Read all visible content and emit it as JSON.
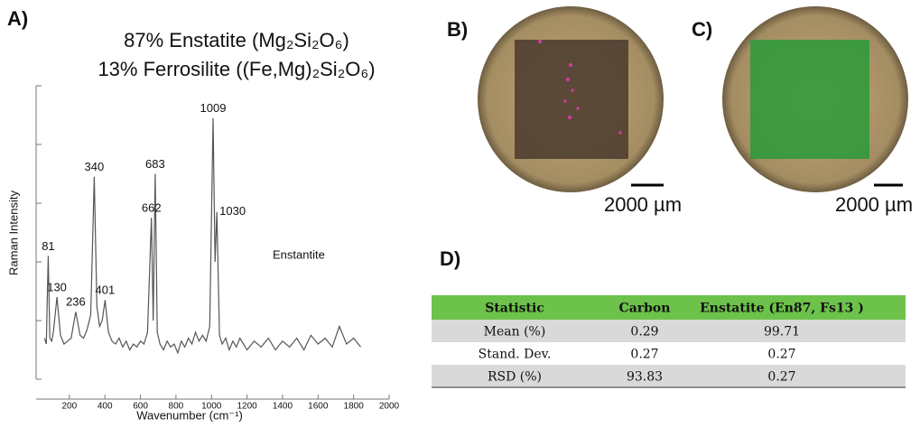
{
  "chart_data": {
    "type": "line",
    "panel_label": "A)",
    "title": [
      "87% Enstatite (Mg₂Si₂O₆)",
      "13% Ferrosilite ((Fe,Mg)₂Si₂O₆)"
    ],
    "x_label": "Wavenumber (cm⁻¹)",
    "y_label": "Raman Intensity",
    "x": [
      60,
      70,
      81,
      90,
      100,
      110,
      130,
      150,
      170,
      190,
      210,
      236,
      260,
      280,
      300,
      320,
      340,
      355,
      370,
      385,
      401,
      420,
      440,
      460,
      480,
      500,
      520,
      540,
      560,
      580,
      600,
      620,
      640,
      662,
      672,
      683,
      695,
      710,
      730,
      750,
      770,
      790,
      810,
      830,
      850,
      870,
      890,
      910,
      930,
      950,
      970,
      990,
      1009,
      1020,
      1030,
      1045,
      1060,
      1080,
      1100,
      1120,
      1140,
      1160,
      1180,
      1200,
      1240,
      1280,
      1320,
      1360,
      1400,
      1440,
      1480,
      1520,
      1560,
      1600,
      1640,
      1680,
      1720,
      1760,
      1800,
      1840
    ],
    "series": [
      {
        "name": "Enstantite",
        "color": "#555555",
        "values": [
          14,
          12,
          42,
          14,
          13,
          16,
          28,
          15,
          12,
          13,
          14,
          23,
          15,
          14,
          17,
          22,
          69,
          25,
          18,
          20,
          27,
          16,
          13,
          12,
          14,
          11,
          13,
          10,
          12,
          11,
          13,
          12,
          16,
          55,
          20,
          70,
          16,
          12,
          10,
          13,
          11,
          12,
          9,
          13,
          11,
          14,
          12,
          16,
          13,
          15,
          13,
          18,
          89,
          40,
          57,
          15,
          12,
          14,
          10,
          13,
          11,
          14,
          12,
          10,
          13,
          11,
          14,
          10,
          13,
          11,
          14,
          10,
          15,
          12,
          14,
          11,
          18,
          12,
          14,
          11
        ]
      }
    ],
    "peaks": [
      81,
      130,
      236,
      340,
      401,
      662,
      683,
      1009,
      1030
    ],
    "xlim": [
      0,
      2000
    ],
    "xticks": [
      200,
      400,
      600,
      800,
      1000,
      1200,
      1400,
      1600,
      1800,
      2000
    ],
    "ylim": [
      0,
      100
    ],
    "yticks": [
      0,
      20,
      40,
      60,
      80,
      100
    ]
  },
  "images": [
    {
      "label": "B)",
      "scale_bar": "2000 µm"
    },
    {
      "label": "C)",
      "scale_bar": "2000 µm"
    }
  ],
  "table": {
    "label": "D)",
    "header": [
      "Statistic",
      "Carbon",
      "Enstatite (En87, Fs13 )"
    ],
    "rows": [
      [
        "Mean (%)",
        "0.29",
        "99.71"
      ],
      [
        "Stand. Dev.",
        "0.27",
        "0.27"
      ],
      [
        "RSD (%)",
        "93.83",
        "0.27"
      ]
    ]
  }
}
